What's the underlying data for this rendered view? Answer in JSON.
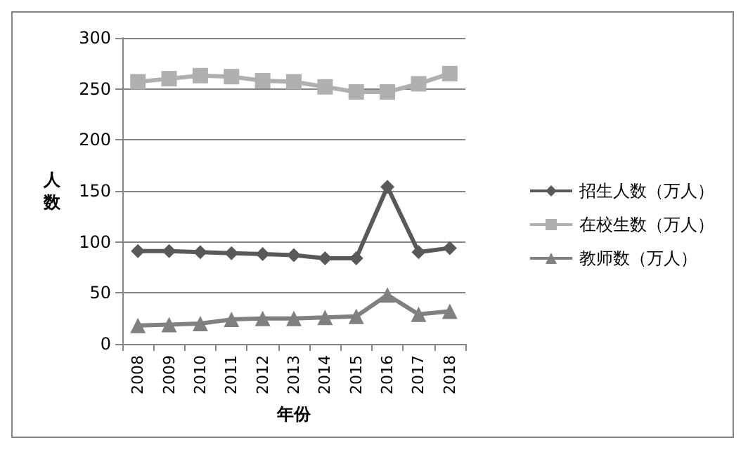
{
  "chart_data": {
    "type": "line",
    "xlabel": "年份",
    "ylabel": "人数",
    "categories": [
      "2008",
      "2009",
      "2010",
      "2011",
      "2012",
      "2013",
      "2014",
      "2015",
      "2016",
      "2017",
      "2018"
    ],
    "series": [
      {
        "name": "招生人数（万人）",
        "color": "#595959",
        "marker": "diamond",
        "values": [
          91,
          91,
          90,
          89,
          88,
          87,
          84,
          84,
          154,
          90,
          94
        ]
      },
      {
        "name": "在校生数（万人）",
        "color": "#b0b0b0",
        "marker": "square",
        "values": [
          257,
          260,
          263,
          262,
          258,
          257,
          252,
          247,
          247,
          255,
          265
        ]
      },
      {
        "name": "教师数（万人）",
        "color": "#808080",
        "marker": "triangle",
        "values": [
          18,
          19,
          20,
          24,
          25,
          25,
          26,
          27,
          48,
          29,
          32
        ]
      }
    ],
    "ylim": [
      0,
      300
    ],
    "yticks": [
      0,
      50,
      100,
      150,
      200,
      250,
      300
    ],
    "grid": "y",
    "legend": "right"
  }
}
